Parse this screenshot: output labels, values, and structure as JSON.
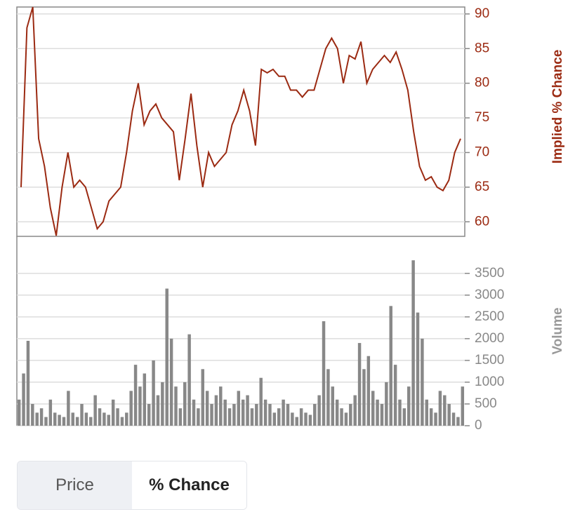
{
  "chart_data": [
    {
      "type": "line",
      "y_label": "Implied % Chance",
      "ylim": [
        57.9,
        91
      ],
      "yticks": [
        60,
        65,
        70,
        75,
        80,
        85,
        90
      ],
      "grid": true,
      "series": [
        {
          "name": "Implied % Chance",
          "color": "#9b2a12",
          "values": [
            65,
            88,
            91,
            72,
            68,
            62,
            58,
            65,
            70,
            65,
            66,
            65,
            62,
            59,
            60,
            63,
            64,
            65,
            70,
            76,
            80,
            74,
            76,
            77,
            75,
            74,
            73,
            66,
            72,
            78.5,
            71,
            65,
            70,
            68,
            69,
            70,
            74,
            76,
            79,
            76,
            71,
            82,
            81.5,
            82,
            81,
            81,
            79,
            79,
            78,
            79,
            79,
            82,
            85,
            86.5,
            85,
            80,
            84,
            83.5,
            86,
            80,
            82,
            83,
            84,
            83,
            84.5,
            82,
            79,
            73,
            68,
            66,
            66.5,
            65,
            64.5,
            66,
            70,
            72
          ]
        }
      ]
    },
    {
      "type": "bar",
      "y_label": "Volume",
      "ylim": [
        0,
        4350
      ],
      "yticks": [
        0,
        500,
        1000,
        1500,
        2000,
        2500,
        3000,
        3500
      ],
      "grid": true,
      "series": [
        {
          "name": "Volume",
          "color": "#888888",
          "values": [
            600,
            1200,
            1950,
            500,
            300,
            400,
            200,
            600,
            300,
            250,
            200,
            800,
            300,
            200,
            500,
            300,
            200,
            700,
            400,
            300,
            250,
            600,
            400,
            200,
            300,
            800,
            1400,
            900,
            1200,
            500,
            1500,
            700,
            1000,
            3150,
            2000,
            900,
            400,
            1000,
            2100,
            600,
            400,
            1300,
            800,
            500,
            700,
            900,
            600,
            400,
            500,
            800,
            600,
            700,
            400,
            500,
            1100,
            600,
            500,
            300,
            400,
            600,
            500,
            300,
            200,
            400,
            300,
            250,
            500,
            700,
            2400,
            1300,
            900,
            600,
            400,
            300,
            500,
            700,
            1900,
            1300,
            1600,
            800,
            600,
            500,
            1000,
            2750,
            1400,
            600,
            400,
            900,
            3800,
            2600,
            2000,
            600,
            400,
            300,
            800,
            700,
            500,
            300,
            200,
            900
          ]
        }
      ]
    }
  ],
  "toggle": {
    "options": [
      "Price",
      "% Chance"
    ]
  }
}
